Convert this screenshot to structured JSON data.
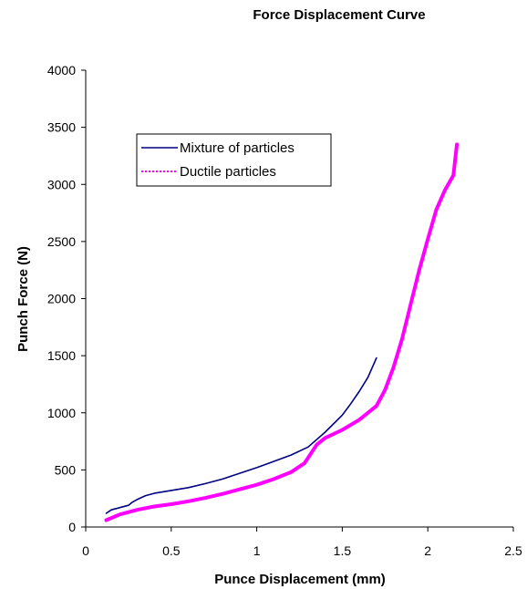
{
  "chart_data": {
    "type": "line",
    "title": "Force Displacement Curve",
    "xlabel": "Punce Displacement (mm)",
    "ylabel": "Punch Force (N)",
    "xlim": [
      0,
      2.5
    ],
    "ylim": [
      0,
      4000
    ],
    "x_ticks": [
      0,
      0.5,
      1,
      1.5,
      2,
      2.5
    ],
    "x_tick_labels": [
      "0",
      "0.5",
      "1",
      "1.5",
      "2",
      "2.5"
    ],
    "y_ticks": [
      0,
      500,
      1000,
      1500,
      2000,
      2500,
      3000,
      3500,
      4000
    ],
    "y_tick_labels": [
      "0",
      "500",
      "1000",
      "1500",
      "2000",
      "2500",
      "3000",
      "3500",
      "4000"
    ],
    "grid": false,
    "legend_position": "upper-left",
    "series": [
      {
        "name": "Mixture of particles",
        "color": "#000080",
        "style": "solid",
        "x": [
          0.12,
          0.15,
          0.2,
          0.25,
          0.27,
          0.3,
          0.35,
          0.4,
          0.5,
          0.6,
          0.7,
          0.8,
          0.9,
          1.0,
          1.1,
          1.2,
          1.3,
          1.4,
          1.5,
          1.55,
          1.6,
          1.65,
          1.7
        ],
        "y": [
          120,
          150,
          170,
          190,
          215,
          240,
          275,
          295,
          320,
          345,
          380,
          420,
          470,
          520,
          575,
          630,
          700,
          830,
          980,
          1080,
          1190,
          1310,
          1480
        ]
      },
      {
        "name": "Ductile particles",
        "color": "#ff00ff",
        "style": "dotted",
        "x": [
          0.12,
          0.2,
          0.3,
          0.4,
          0.5,
          0.6,
          0.7,
          0.8,
          0.9,
          1.0,
          1.1,
          1.2,
          1.28,
          1.35,
          1.4,
          1.5,
          1.6,
          1.7,
          1.75,
          1.8,
          1.85,
          1.9,
          1.95,
          2.0,
          2.05,
          2.1,
          2.15,
          2.17
        ],
        "y": [
          60,
          110,
          150,
          180,
          200,
          225,
          255,
          290,
          330,
          370,
          420,
          480,
          560,
          720,
          780,
          850,
          940,
          1060,
          1200,
          1400,
          1650,
          1950,
          2250,
          2520,
          2780,
          2950,
          3080,
          3350
        ]
      }
    ]
  }
}
